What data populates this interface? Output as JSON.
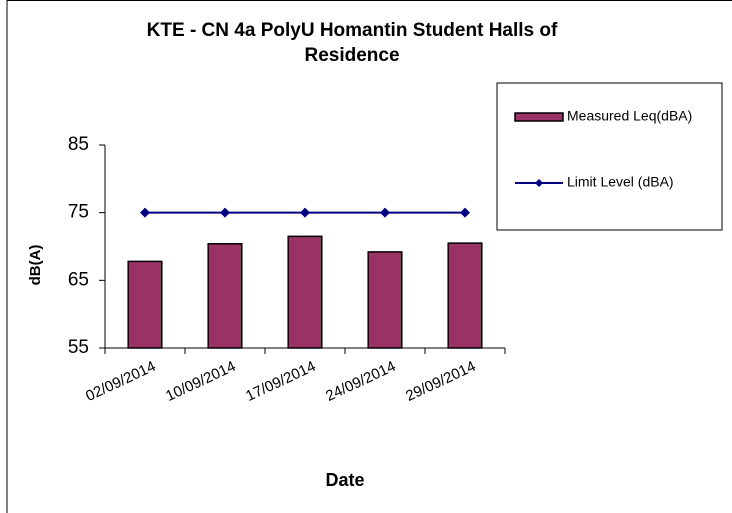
{
  "chart_data": {
    "type": "bar",
    "title": [
      "KTE - CN 4a  PolyU Homantin Student Halls of",
      "Residence"
    ],
    "x_label": "Date",
    "y_label": "dB(A)",
    "categories": [
      "02/09/2014",
      "10/09/2014",
      "17/09/2014",
      "24/09/2014",
      "29/09/2014"
    ],
    "series": [
      {
        "name": "Measured Leq(dBA)",
        "color": "#993366",
        "type": "bar",
        "values": [
          67.8,
          70.4,
          71.5,
          69.2,
          70.5
        ]
      },
      {
        "name": "Limit Level (dBA)",
        "color": "#000080",
        "type": "line",
        "values": [
          75,
          75,
          75,
          75,
          75
        ]
      }
    ],
    "ylim": [
      55,
      85
    ],
    "yticks": [
      55,
      65,
      75,
      85
    ],
    "grid": false,
    "legend": "right"
  }
}
